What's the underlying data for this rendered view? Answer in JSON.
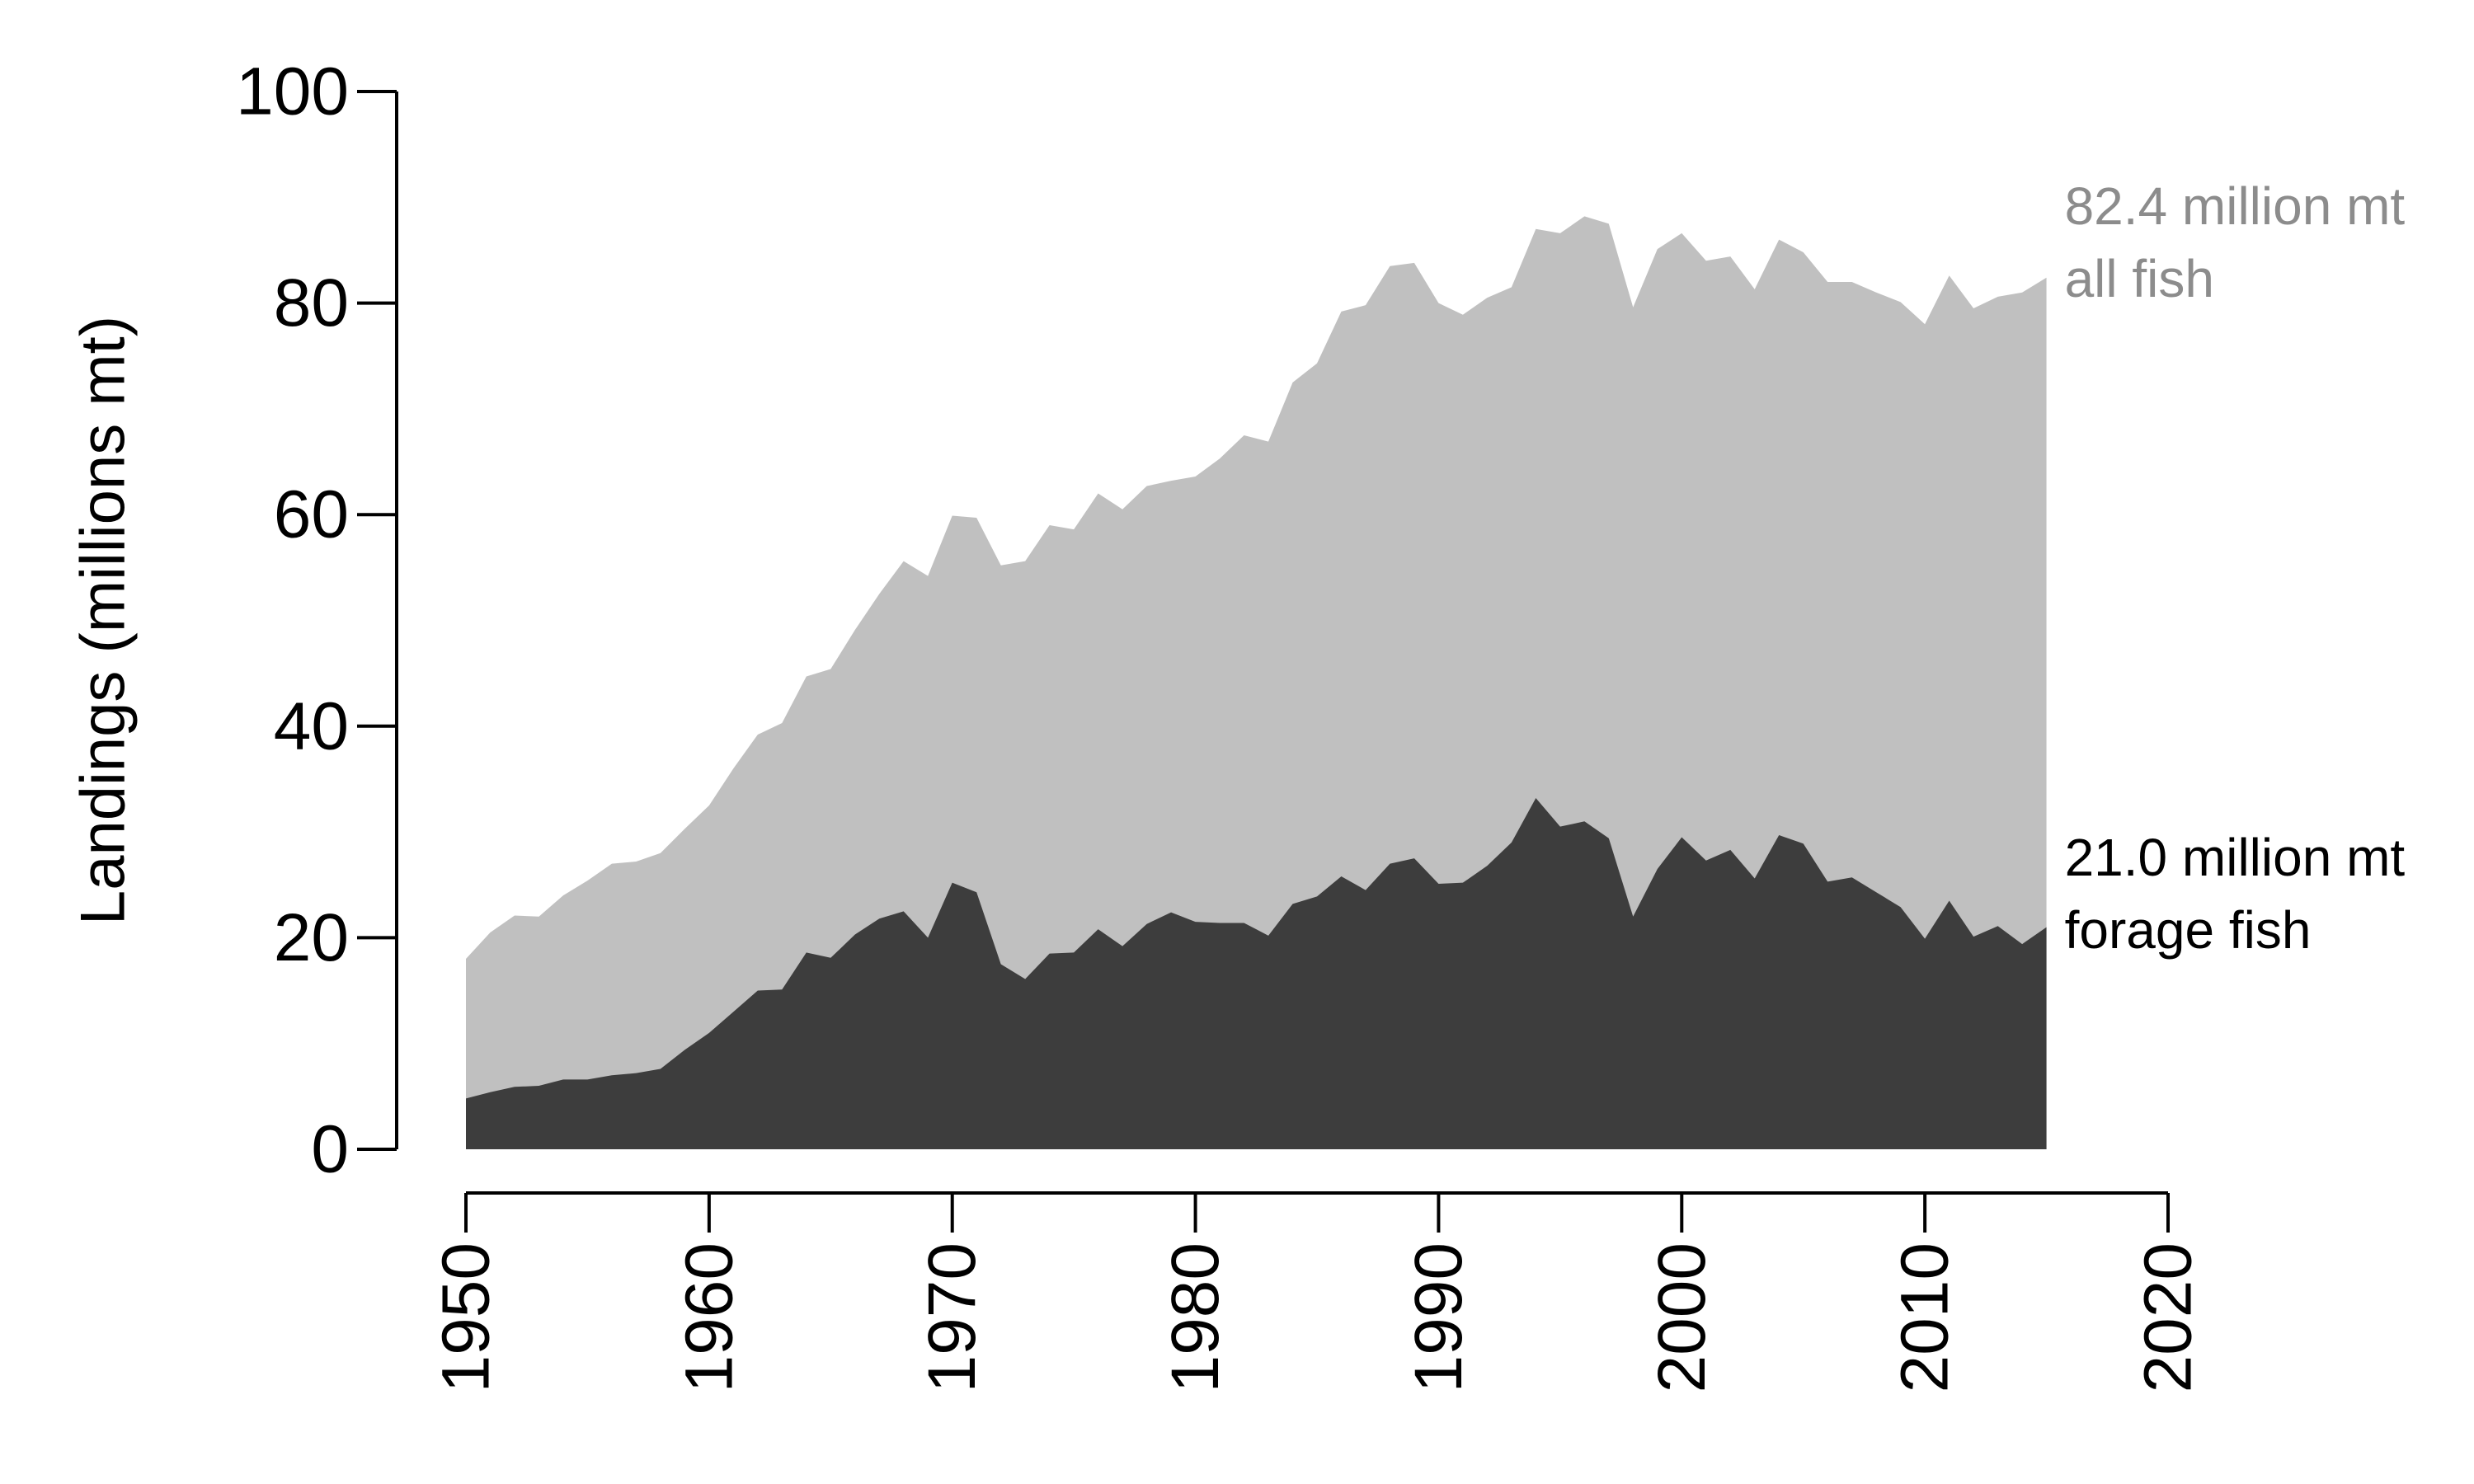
{
  "chart_data": {
    "type": "area",
    "ylabel": "Landings (millions mt)",
    "xlim": [
      1950,
      2020
    ],
    "ylim": [
      0,
      100
    ],
    "x_ticks": [
      1950,
      1960,
      1970,
      1980,
      1990,
      2000,
      2010,
      2020
    ],
    "y_ticks": [
      0,
      20,
      40,
      60,
      80,
      100
    ],
    "grid": false,
    "x": [
      1950,
      1951,
      1952,
      1953,
      1954,
      1955,
      1956,
      1957,
      1958,
      1959,
      1960,
      1961,
      1962,
      1963,
      1964,
      1965,
      1966,
      1967,
      1968,
      1969,
      1970,
      1971,
      1972,
      1973,
      1974,
      1975,
      1976,
      1977,
      1978,
      1979,
      1980,
      1981,
      1982,
      1983,
      1984,
      1985,
      1986,
      1987,
      1988,
      1989,
      1990,
      1991,
      1992,
      1993,
      1994,
      1995,
      1996,
      1997,
      1998,
      1999,
      2000,
      2001,
      2002,
      2003,
      2004,
      2005,
      2006,
      2007,
      2008,
      2009,
      2010,
      2011,
      2012,
      2013,
      2014,
      2015
    ],
    "series": [
      {
        "color": "#c0c0c0",
        "values": [
          18.0,
          20.5,
          22.1,
          22.0,
          24.0,
          25.4,
          27.0,
          27.2,
          28.0,
          30.3,
          32.5,
          36.0,
          39.2,
          40.3,
          44.7,
          45.4,
          49.1,
          52.5,
          55.6,
          54.2,
          59.9,
          59.7,
          55.2,
          55.6,
          59.0,
          58.6,
          62.0,
          60.5,
          62.7,
          63.2,
          63.6,
          65.3,
          67.5,
          66.9,
          72.5,
          74.3,
          79.2,
          79.8,
          83.5,
          83.8,
          80.0,
          78.9,
          80.5,
          81.5,
          87.0,
          86.6,
          88.2,
          87.5,
          79.6,
          85.1,
          86.6,
          84.0,
          84.4,
          81.3,
          86.0,
          84.8,
          82.0,
          82.0,
          81.0,
          80.1,
          78.0,
          82.6,
          79.5,
          80.6,
          81.0,
          82.4
        ]
      },
      {
        "color": "#3d3d3d",
        "values": [
          4.8,
          5.4,
          5.9,
          6.0,
          6.6,
          6.6,
          7.0,
          7.2,
          7.6,
          9.4,
          11.0,
          13.0,
          15.0,
          15.1,
          18.6,
          18.1,
          20.3,
          21.8,
          22.5,
          20.0,
          25.2,
          24.3,
          17.5,
          16.1,
          18.5,
          18.6,
          20.8,
          19.2,
          21.3,
          22.4,
          21.5,
          21.4,
          21.4,
          20.2,
          23.2,
          23.9,
          25.8,
          24.5,
          27.0,
          27.5,
          25.1,
          25.2,
          26.8,
          29.0,
          33.2,
          30.5,
          31.0,
          29.4,
          22.0,
          26.5,
          29.5,
          27.3,
          28.3,
          25.6,
          29.7,
          28.9,
          25.3,
          25.7,
          24.3,
          22.9,
          19.9,
          23.5,
          20.1,
          21.1,
          19.4,
          21.0
        ]
      }
    ],
    "annotations": [
      {
        "lines": [
          "82.4 million mt",
          "all fish"
        ],
        "color": "#8c8c8c"
      },
      {
        "lines": [
          "21.0 million mt",
          "forage fish"
        ],
        "color": "#000000"
      }
    ]
  }
}
